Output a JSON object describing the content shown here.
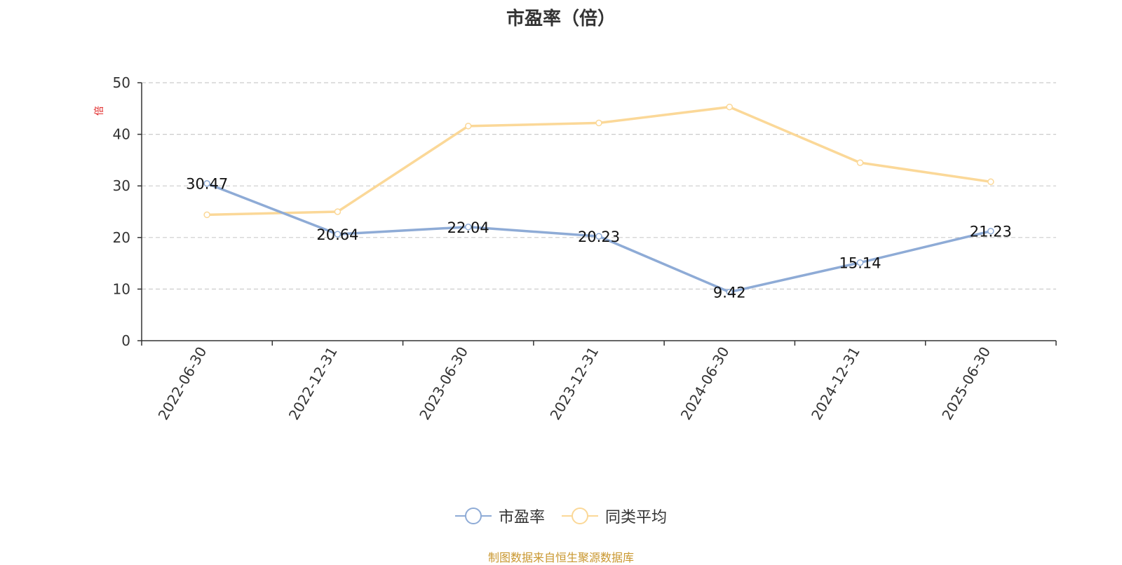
{
  "chart_data": {
    "type": "line",
    "title": "市盈率（倍）",
    "ylabel": "倍",
    "xlabel": "",
    "ylim": [
      0,
      50
    ],
    "yticks": [
      0,
      10,
      20,
      30,
      40,
      50
    ],
    "grid": "horizontal dashed",
    "legend_position": "bottom-center",
    "categories": [
      "2022-06-30",
      "2022-12-31",
      "2023-06-30",
      "2023-12-31",
      "2024-06-30",
      "2024-12-31",
      "2025-06-30"
    ],
    "series": [
      {
        "name": "市盈率",
        "color": "#8eabd6",
        "values": [
          30.47,
          20.64,
          22.04,
          20.23,
          9.42,
          15.14,
          21.23
        ],
        "data_labels": [
          "30.47",
          "20.64",
          "22.04",
          "20.23",
          "9.42",
          "15.14",
          "21.23"
        ]
      },
      {
        "name": "同类平均",
        "color": "#fbd898",
        "values": [
          24.4,
          25.0,
          41.6,
          42.2,
          45.3,
          34.5,
          30.8
        ]
      }
    ]
  },
  "source": "制图数据来自恒生聚源数据库"
}
